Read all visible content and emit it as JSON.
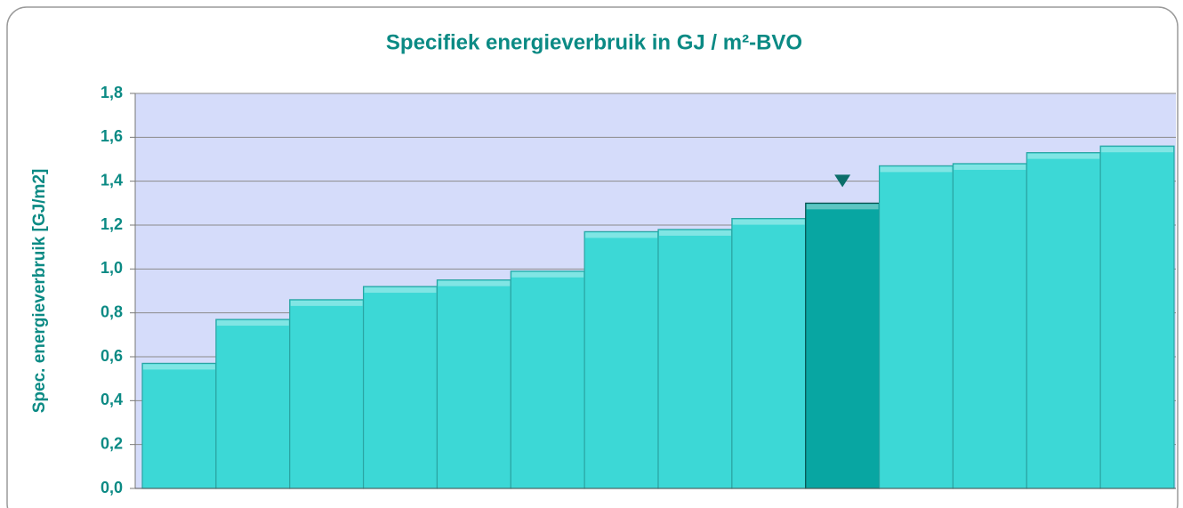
{
  "chart_data": {
    "type": "bar",
    "title": "Specifiek energieverbruik in GJ / m²-BVO",
    "y_label": "Spec. energieverbruik [GJ/m2]",
    "categories": [
      null,
      null,
      null,
      null,
      null,
      null,
      null,
      null,
      null,
      null,
      null,
      null,
      null,
      null
    ],
    "values": [
      0.57,
      0.77,
      0.86,
      0.92,
      0.95,
      0.99,
      1.17,
      1.18,
      1.23,
      1.3,
      1.47,
      1.48,
      1.53,
      1.56
    ],
    "colors": [
      "#3cd8d6",
      "#3cd8d6",
      "#3cd8d6",
      "#3cd8d6",
      "#3cd8d6",
      "#3cd8d6",
      "#3cd8d6",
      "#3cd8d6",
      "#3cd8d6",
      "#08a6a2",
      "#3cd8d6",
      "#3cd8d6",
      "#3cd8d6",
      "#3cd8d6"
    ],
    "ylim": [
      0,
      1.8
    ],
    "yticks": [
      {
        "value": 0,
        "label": "0,0"
      },
      {
        "value": 0.2,
        "label": "0,2"
      },
      {
        "value": 0.4,
        "label": "0,4"
      },
      {
        "value": 0.6,
        "label": "0,6"
      },
      {
        "value": 0.8,
        "label": "0,8"
      },
      {
        "value": 1.0,
        "label": "1,0"
      },
      {
        "value": 1.2,
        "label": "1,2"
      },
      {
        "value": 1.4,
        "label": "1,4"
      },
      {
        "value": 1.6,
        "label": "1,6"
      },
      {
        "value": 1.8,
        "label": "1,8"
      }
    ],
    "grid": true
  }
}
